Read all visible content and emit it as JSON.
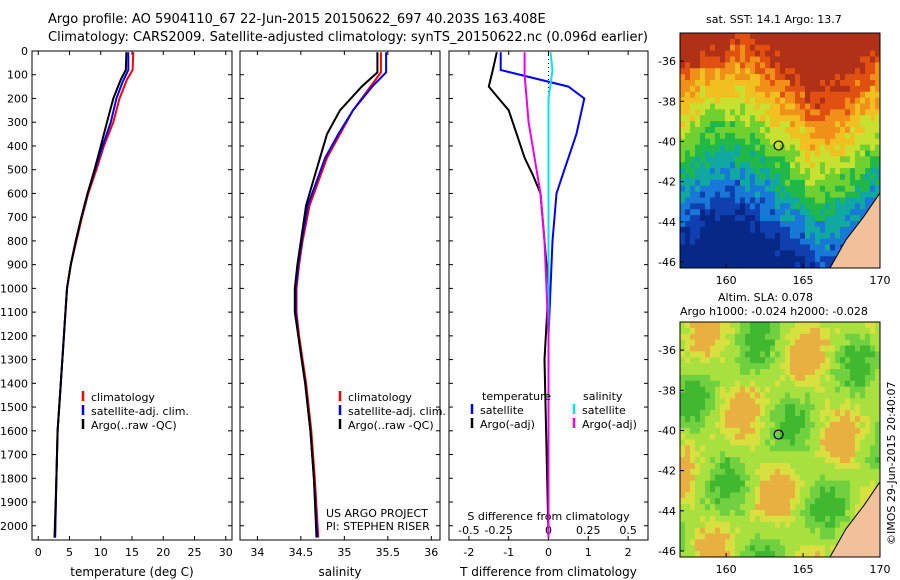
{
  "header": {
    "line1": "Argo profile: AO 5904110_67 22-Jun-2015 20150622_697 40.203S 163.408E",
    "line2": "Climatology: CARS2009. Satellite-adjusted climatology: synTS_20150622.nc (0.096d earlier)"
  },
  "colors": {
    "climatology": "#ff0000",
    "satellite": "#0000ff",
    "argo": "#000000",
    "salinity_satellite": "#00e5ee",
    "salinity_argo": "#ee00ee"
  },
  "depth_axis": {
    "ticks": [
      0,
      100,
      200,
      300,
      400,
      500,
      600,
      700,
      800,
      900,
      1000,
      1100,
      1200,
      1300,
      1400,
      1500,
      1600,
      1700,
      1800,
      1900,
      2000
    ],
    "range": [
      0,
      2060
    ]
  },
  "chart_data": [
    {
      "type": "line",
      "panel": "temperature",
      "xlabel": "temperature (deg C)",
      "xlim": [
        -1,
        31
      ],
      "xticks": [
        0,
        5,
        10,
        15,
        20,
        25,
        30
      ],
      "legend": [
        "climatology",
        "satellite-adj. clim.",
        "Argo(..raw -QC)"
      ],
      "series": [
        {
          "name": "climatology",
          "points": [
            [
              15.2,
              5
            ],
            [
              15.1,
              80
            ],
            [
              14.2,
              120
            ],
            [
              13.0,
              200
            ],
            [
              12.0,
              300
            ],
            [
              10.5,
              400
            ],
            [
              9.3,
              500
            ],
            [
              8.0,
              600
            ],
            [
              7.0,
              700
            ],
            [
              6.1,
              800
            ],
            [
              5.2,
              900
            ],
            [
              4.6,
              1000
            ],
            [
              4.1,
              1200
            ],
            [
              3.6,
              1400
            ],
            [
              3.1,
              1600
            ],
            [
              2.9,
              1800
            ],
            [
              2.7,
              2050
            ]
          ]
        },
        {
          "name": "satellite-adj. clim.",
          "points": [
            [
              14.4,
              5
            ],
            [
              14.4,
              80
            ],
            [
              13.5,
              130
            ],
            [
              12.5,
              200
            ],
            [
              11.6,
              300
            ],
            [
              10.3,
              400
            ],
            [
              9.1,
              500
            ],
            [
              7.9,
              600
            ],
            [
              6.9,
              700
            ],
            [
              6.0,
              800
            ],
            [
              5.2,
              900
            ],
            [
              4.6,
              1000
            ],
            [
              4.1,
              1200
            ],
            [
              3.6,
              1400
            ],
            [
              3.1,
              1600
            ],
            [
              2.9,
              1800
            ],
            [
              2.7,
              2050
            ]
          ]
        },
        {
          "name": "Argo(..raw -QC)",
          "points": [
            [
              14.1,
              5
            ],
            [
              14.0,
              80
            ],
            [
              13.2,
              120
            ],
            [
              12.0,
              200
            ],
            [
              11.0,
              300
            ],
            [
              10.0,
              400
            ],
            [
              9.0,
              500
            ],
            [
              7.9,
              600
            ],
            [
              6.9,
              700
            ],
            [
              6.0,
              800
            ],
            [
              5.2,
              900
            ],
            [
              4.6,
              1000
            ],
            [
              4.1,
              1200
            ],
            [
              3.6,
              1400
            ],
            [
              3.1,
              1600
            ],
            [
              2.9,
              1800
            ],
            [
              2.6,
              2050
            ]
          ]
        }
      ]
    },
    {
      "type": "line",
      "panel": "salinity",
      "xlabel": "salinity",
      "xlim": [
        33.8,
        36.1
      ],
      "xticks": [
        34,
        34.5,
        35,
        35.5,
        36
      ],
      "legend": [
        "climatology",
        "satellite-adj. clim.",
        "Argo(..raw -QC)"
      ],
      "annotation": [
        "US ARGO PROJECT",
        "PI: STEPHEN RISER"
      ],
      "series": [
        {
          "name": "climatology",
          "points": [
            [
              35.42,
              5
            ],
            [
              35.42,
              90
            ],
            [
              35.3,
              150
            ],
            [
              35.1,
              250
            ],
            [
              34.95,
              350
            ],
            [
              34.8,
              450
            ],
            [
              34.7,
              550
            ],
            [
              34.6,
              650
            ],
            [
              34.52,
              800
            ],
            [
              34.48,
              900
            ],
            [
              34.45,
              1000
            ],
            [
              34.45,
              1100
            ],
            [
              34.48,
              1200
            ],
            [
              34.52,
              1300
            ],
            [
              34.56,
              1400
            ],
            [
              34.59,
              1500
            ],
            [
              34.62,
              1600
            ],
            [
              34.66,
              1800
            ],
            [
              34.7,
              2050
            ]
          ]
        },
        {
          "name": "satellite-adj. clim.",
          "points": [
            [
              35.48,
              5
            ],
            [
              35.48,
              90
            ],
            [
              35.32,
              150
            ],
            [
              35.1,
              250
            ],
            [
              34.93,
              350
            ],
            [
              34.78,
              450
            ],
            [
              34.68,
              550
            ],
            [
              34.58,
              650
            ],
            [
              34.51,
              800
            ],
            [
              34.47,
              900
            ],
            [
              34.44,
              1000
            ],
            [
              34.44,
              1100
            ],
            [
              34.47,
              1200
            ],
            [
              34.51,
              1300
            ],
            [
              34.55,
              1400
            ],
            [
              34.58,
              1500
            ],
            [
              34.61,
              1600
            ],
            [
              34.65,
              1800
            ],
            [
              34.69,
              2050
            ]
          ]
        },
        {
          "name": "Argo(..raw -QC)",
          "points": [
            [
              35.38,
              5
            ],
            [
              35.38,
              90
            ],
            [
              35.2,
              150
            ],
            [
              34.95,
              250
            ],
            [
              34.8,
              350
            ],
            [
              34.72,
              450
            ],
            [
              34.64,
              550
            ],
            [
              34.56,
              650
            ],
            [
              34.5,
              800
            ],
            [
              34.46,
              900
            ],
            [
              34.43,
              1000
            ],
            [
              34.43,
              1100
            ],
            [
              34.47,
              1200
            ],
            [
              34.51,
              1300
            ],
            [
              34.55,
              1400
            ],
            [
              34.58,
              1500
            ],
            [
              34.61,
              1600
            ],
            [
              34.65,
              1800
            ],
            [
              34.68,
              2050
            ]
          ]
        }
      ]
    },
    {
      "type": "line",
      "panel": "difference",
      "xlabel": "T difference from climatology",
      "xlabel_top": "S difference from climatology",
      "xlim": [
        -2.5,
        2.5
      ],
      "xticks": [
        -2,
        -1,
        0,
        1,
        2
      ],
      "xticks_top": [
        "-0.5",
        "-0.25",
        "0",
        "0.25",
        "0.5"
      ],
      "legend_titles": [
        "temperature",
        "salinity"
      ],
      "legend": [
        "satellite",
        "Argo(-adj)",
        "satellite",
        "Argo(-adj)"
      ],
      "series": [
        {
          "name": "satellite",
          "points": [
            [
              -1.2,
              5
            ],
            [
              -1.2,
              80
            ],
            [
              0.5,
              150
            ],
            [
              0.9,
              200
            ],
            [
              0.7,
              350
            ],
            [
              0.4,
              500
            ],
            [
              0.2,
              600
            ],
            [
              0.1,
              800
            ],
            [
              0.05,
              1000
            ],
            [
              0.0,
              1200
            ],
            [
              0.0,
              2050
            ]
          ]
        },
        {
          "name": "Argo(-adj)",
          "points": [
            [
              -1.3,
              5
            ],
            [
              -1.4,
              80
            ],
            [
              -1.5,
              150
            ],
            [
              -1.0,
              250
            ],
            [
              -0.8,
              350
            ],
            [
              -0.6,
              450
            ],
            [
              -0.4,
              520
            ],
            [
              -0.2,
              600
            ],
            [
              -0.1,
              800
            ],
            [
              0.0,
              1000
            ],
            [
              -0.1,
              1300
            ],
            [
              0.0,
              2050
            ]
          ]
        },
        {
          "name": "satellite",
          "points": [
            [
              0.05,
              5
            ],
            [
              0.1,
              80
            ],
            [
              0.0,
              200
            ],
            [
              0.0,
              500
            ],
            [
              0.0,
              800
            ],
            [
              0.0,
              2050
            ]
          ]
        },
        {
          "name": "Argo(-adj)",
          "points": [
            [
              -0.6,
              5
            ],
            [
              -0.6,
              100
            ],
            [
              -0.5,
              300
            ],
            [
              -0.4,
              400
            ],
            [
              -0.2,
              600
            ],
            [
              -0.1,
              800
            ],
            [
              0.0,
              1200
            ],
            [
              0.0,
              2050
            ]
          ]
        }
      ]
    }
  ],
  "maps": {
    "sst": {
      "title": "sat. SST: 14.1  Argo: 13.7",
      "yticks": [
        "-36",
        "-38",
        "-40",
        "-42",
        "-44",
        "-46"
      ],
      "xticks": [
        "160",
        "165",
        "170"
      ]
    },
    "sla": {
      "title1": "Altim. SLA: 0.078",
      "title2": "Argo h1000: -0.024  h2000: -0.028",
      "yticks": [
        "-36",
        "-38",
        "-40",
        "-42",
        "-44",
        "-46"
      ],
      "xticks": [
        "160",
        "165",
        "170"
      ]
    }
  },
  "watermark": "©IMOS 29-Jun-2015 20:40:07"
}
